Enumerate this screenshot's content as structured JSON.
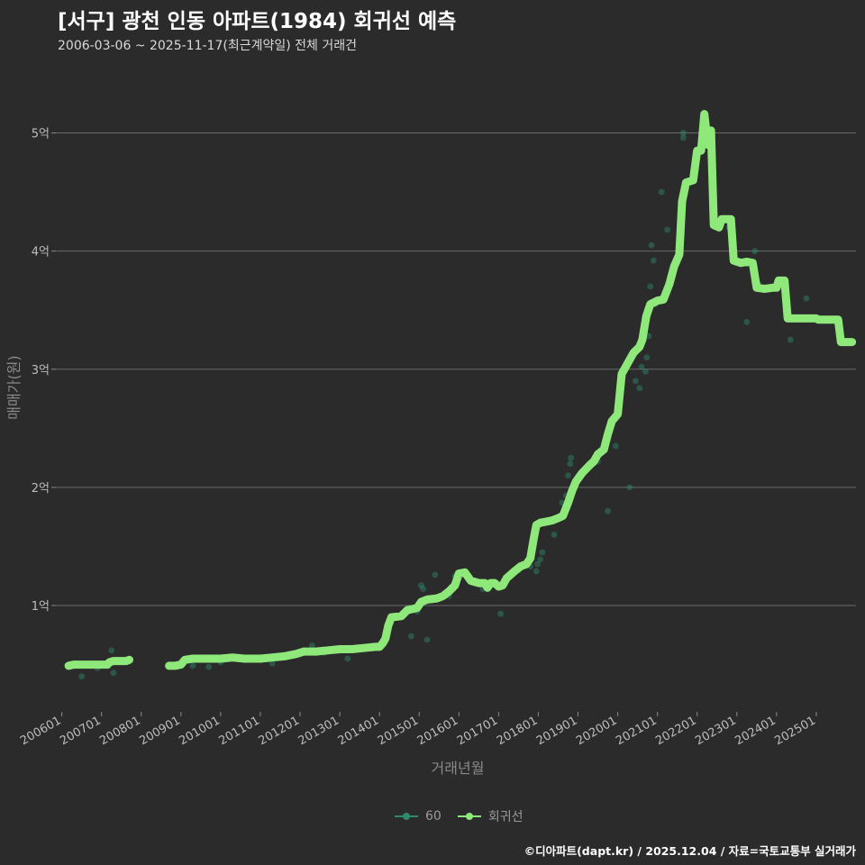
{
  "header": {
    "title": "[서구] 광천 인동 아파트(1984) 회귀선 예측",
    "subtitle": "2006-03-06 ~ 2025-11-17(최근계약일) 전체 거래건"
  },
  "footer": {
    "credit": "©디아파트(dapt.kr) / 2025.12.04 / 자료=국토교통부 실거래가"
  },
  "colors": {
    "scatter": "#2e8b6f",
    "line": "#8ee87a",
    "grid": "#6a6a6a",
    "background": "#2b2b2c"
  },
  "chart_data": {
    "type": "line",
    "title": "[서구] 광천 인동 아파트(1984) 회귀선 예측",
    "xlabel": "거래년월",
    "ylabel": "매매가(원)",
    "y_unit": "억",
    "xlim": [
      2005.85,
      2026.0
    ],
    "ylim": [
      0.1,
      5.5
    ],
    "x_ticks": [
      {
        "value": 2006.0,
        "label": "200601"
      },
      {
        "value": 2007.0,
        "label": "200701"
      },
      {
        "value": 2008.0,
        "label": "200801"
      },
      {
        "value": 2009.0,
        "label": "200901"
      },
      {
        "value": 2010.0,
        "label": "201001"
      },
      {
        "value": 2011.0,
        "label": "201101"
      },
      {
        "value": 2012.0,
        "label": "201201"
      },
      {
        "value": 2013.0,
        "label": "201301"
      },
      {
        "value": 2014.0,
        "label": "201401"
      },
      {
        "value": 2015.0,
        "label": "201501"
      },
      {
        "value": 2016.0,
        "label": "201601"
      },
      {
        "value": 2017.0,
        "label": "201701"
      },
      {
        "value": 2018.0,
        "label": "201801"
      },
      {
        "value": 2019.0,
        "label": "201901"
      },
      {
        "value": 2020.0,
        "label": "202001"
      },
      {
        "value": 2021.0,
        "label": "202101"
      },
      {
        "value": 2022.0,
        "label": "202201"
      },
      {
        "value": 2023.0,
        "label": "202301"
      },
      {
        "value": 2024.0,
        "label": "202401"
      },
      {
        "value": 2025.0,
        "label": "202501"
      }
    ],
    "y_ticks": [
      {
        "value": 1,
        "label": "1억"
      },
      {
        "value": 2,
        "label": "2억"
      },
      {
        "value": 3,
        "label": "3억"
      },
      {
        "value": 4,
        "label": "4억"
      },
      {
        "value": 5,
        "label": "5억"
      }
    ],
    "legend": [
      {
        "name": "60",
        "color": "#2e8b6f"
      },
      {
        "name": "회귀선",
        "color": "#8ee87a"
      }
    ],
    "series": [
      {
        "name": "회귀선",
        "segments": [
          [
            [
              2006.17,
              0.49
            ],
            [
              2006.3,
              0.5
            ],
            [
              2006.6,
              0.5
            ],
            [
              2006.9,
              0.5
            ],
            [
              2007.0,
              0.5
            ],
            [
              2007.15,
              0.5
            ],
            [
              2007.2,
              0.52
            ],
            [
              2007.3,
              0.53
            ],
            [
              2007.5,
              0.53
            ],
            [
              2007.62,
              0.53
            ],
            [
              2007.7,
              0.54
            ]
          ],
          [
            [
              2008.7,
              0.49
            ],
            [
              2008.85,
              0.49
            ],
            [
              2009.0,
              0.5
            ],
            [
              2009.1,
              0.54
            ],
            [
              2009.3,
              0.55
            ],
            [
              2009.6,
              0.55
            ],
            [
              2010.0,
              0.55
            ],
            [
              2010.3,
              0.56
            ],
            [
              2010.6,
              0.55
            ],
            [
              2011.0,
              0.55
            ],
            [
              2011.3,
              0.56
            ],
            [
              2011.6,
              0.57
            ],
            [
              2011.9,
              0.59
            ],
            [
              2012.1,
              0.61
            ],
            [
              2012.4,
              0.61
            ],
            [
              2012.7,
              0.62
            ],
            [
              2013.0,
              0.63
            ],
            [
              2013.3,
              0.63
            ],
            [
              2013.6,
              0.64
            ],
            [
              2013.9,
              0.65
            ],
            [
              2014.0,
              0.65
            ],
            [
              2014.08,
              0.68
            ],
            [
              2014.15,
              0.72
            ],
            [
              2014.22,
              0.83
            ],
            [
              2014.3,
              0.9
            ],
            [
              2014.55,
              0.91
            ],
            [
              2014.7,
              0.96
            ],
            [
              2014.95,
              0.98
            ],
            [
              2015.05,
              1.03
            ],
            [
              2015.2,
              1.05
            ],
            [
              2015.45,
              1.06
            ],
            [
              2015.6,
              1.08
            ],
            [
              2015.75,
              1.12
            ],
            [
              2015.9,
              1.17
            ],
            [
              2016.0,
              1.27
            ],
            [
              2016.15,
              1.28
            ],
            [
              2016.3,
              1.21
            ],
            [
              2016.5,
              1.19
            ],
            [
              2016.65,
              1.19
            ],
            [
              2016.72,
              1.15
            ],
            [
              2016.8,
              1.19
            ],
            [
              2016.9,
              1.19
            ],
            [
              2017.0,
              1.16
            ],
            [
              2017.1,
              1.17
            ],
            [
              2017.2,
              1.23
            ],
            [
              2017.4,
              1.29
            ],
            [
              2017.55,
              1.33
            ],
            [
              2017.7,
              1.35
            ],
            [
              2017.8,
              1.4
            ],
            [
              2017.88,
              1.56
            ],
            [
              2017.95,
              1.68
            ],
            [
              2018.05,
              1.7
            ],
            [
              2018.2,
              1.71
            ],
            [
              2018.35,
              1.72
            ],
            [
              2018.5,
              1.74
            ],
            [
              2018.62,
              1.76
            ],
            [
              2018.75,
              1.87
            ],
            [
              2018.85,
              1.97
            ],
            [
              2018.95,
              2.05
            ],
            [
              2019.1,
              2.12
            ],
            [
              2019.3,
              2.19
            ],
            [
              2019.4,
              2.22
            ],
            [
              2019.5,
              2.28
            ],
            [
              2019.65,
              2.32
            ],
            [
              2019.75,
              2.45
            ],
            [
              2019.85,
              2.56
            ],
            [
              2020.0,
              2.62
            ],
            [
              2020.1,
              2.96
            ],
            [
              2020.25,
              3.05
            ],
            [
              2020.4,
              3.14
            ],
            [
              2020.55,
              3.19
            ],
            [
              2020.62,
              3.25
            ],
            [
              2020.72,
              3.45
            ],
            [
              2020.82,
              3.55
            ],
            [
              2021.0,
              3.58
            ],
            [
              2021.15,
              3.59
            ],
            [
              2021.3,
              3.72
            ],
            [
              2021.42,
              3.87
            ],
            [
              2021.55,
              3.97
            ],
            [
              2021.62,
              4.42
            ],
            [
              2021.72,
              4.58
            ],
            [
              2021.9,
              4.6
            ],
            [
              2022.0,
              4.85
            ],
            [
              2022.1,
              4.85
            ],
            [
              2022.18,
              5.16
            ],
            [
              2022.27,
              4.9
            ],
            [
              2022.35,
              5.02
            ],
            [
              2022.42,
              4.22
            ],
            [
              2022.55,
              4.2
            ],
            [
              2022.62,
              4.27
            ],
            [
              2022.75,
              4.27
            ],
            [
              2022.85,
              4.27
            ],
            [
              2022.92,
              3.92
            ],
            [
              2023.1,
              3.9
            ],
            [
              2023.25,
              3.91
            ],
            [
              2023.4,
              3.9
            ],
            [
              2023.5,
              3.69
            ],
            [
              2023.7,
              3.68
            ],
            [
              2023.9,
              3.69
            ],
            [
              2024.0,
              3.69
            ],
            [
              2024.05,
              3.75
            ],
            [
              2024.2,
              3.75
            ],
            [
              2024.28,
              3.43
            ],
            [
              2024.5,
              3.43
            ],
            [
              2024.8,
              3.43
            ],
            [
              2025.0,
              3.43
            ],
            [
              2025.05,
              3.42
            ],
            [
              2025.3,
              3.42
            ],
            [
              2025.55,
              3.42
            ],
            [
              2025.62,
              3.23
            ],
            [
              2025.75,
              3.23
            ],
            [
              2025.9,
              3.23
            ]
          ]
        ]
      },
      {
        "name": "60",
        "points": [
          [
            2006.2,
            0.48
          ],
          [
            2006.5,
            0.4
          ],
          [
            2006.9,
            0.47
          ],
          [
            2007.25,
            0.62
          ],
          [
            2007.3,
            0.43
          ],
          [
            2007.5,
            0.53
          ],
          [
            2009.3,
            0.49
          ],
          [
            2009.7,
            0.48
          ],
          [
            2010.0,
            0.52
          ],
          [
            2010.4,
            0.55
          ],
          [
            2011.3,
            0.51
          ],
          [
            2011.6,
            0.56
          ],
          [
            2012.1,
            0.62
          ],
          [
            2012.3,
            0.66
          ],
          [
            2012.6,
            0.6
          ],
          [
            2013.2,
            0.55
          ],
          [
            2013.5,
            0.63
          ],
          [
            2013.9,
            0.65
          ],
          [
            2014.3,
            0.9
          ],
          [
            2014.7,
            0.98
          ],
          [
            2014.8,
            0.74
          ],
          [
            2014.95,
            0.95
          ],
          [
            2015.05,
            1.17
          ],
          [
            2015.1,
            1.14
          ],
          [
            2015.2,
            0.71
          ],
          [
            2015.4,
            1.26
          ],
          [
            2015.75,
            1.08
          ],
          [
            2015.9,
            1.25
          ],
          [
            2016.4,
            1.2
          ],
          [
            2016.6,
            1.14
          ],
          [
            2016.9,
            1.2
          ],
          [
            2017.05,
            0.93
          ],
          [
            2017.5,
            1.3
          ],
          [
            2017.7,
            1.34
          ],
          [
            2017.8,
            1.33
          ],
          [
            2017.95,
            1.29
          ],
          [
            2017.98,
            1.35
          ],
          [
            2018.05,
            1.39
          ],
          [
            2018.1,
            1.45
          ],
          [
            2018.4,
            1.6
          ],
          [
            2018.6,
            1.87
          ],
          [
            2018.7,
            1.93
          ],
          [
            2018.75,
            2.1
          ],
          [
            2018.8,
            2.2
          ],
          [
            2018.82,
            2.25
          ],
          [
            2019.5,
            2.22
          ],
          [
            2019.75,
            1.8
          ],
          [
            2019.95,
            2.35
          ],
          [
            2020.3,
            2.0
          ],
          [
            2020.45,
            2.9
          ],
          [
            2020.55,
            2.84
          ],
          [
            2020.6,
            3.02
          ],
          [
            2020.7,
            2.98
          ],
          [
            2020.73,
            3.1
          ],
          [
            2020.78,
            3.28
          ],
          [
            2020.82,
            3.7
          ],
          [
            2020.85,
            4.05
          ],
          [
            2020.9,
            3.92
          ],
          [
            2020.95,
            3.55
          ],
          [
            2021.1,
            4.5
          ],
          [
            2021.25,
            4.18
          ],
          [
            2021.65,
            5.0
          ],
          [
            2021.65,
            4.96
          ],
          [
            2022.3,
            5.02
          ],
          [
            2022.8,
            4.2
          ],
          [
            2023.25,
            3.4
          ],
          [
            2023.45,
            4.0
          ],
          [
            2023.55,
            3.72
          ],
          [
            2024.35,
            3.25
          ],
          [
            2024.75,
            3.6
          ],
          [
            2024.9,
            3.42
          ],
          [
            2025.4,
            3.42
          ],
          [
            2025.8,
            3.23
          ]
        ]
      }
    ]
  }
}
